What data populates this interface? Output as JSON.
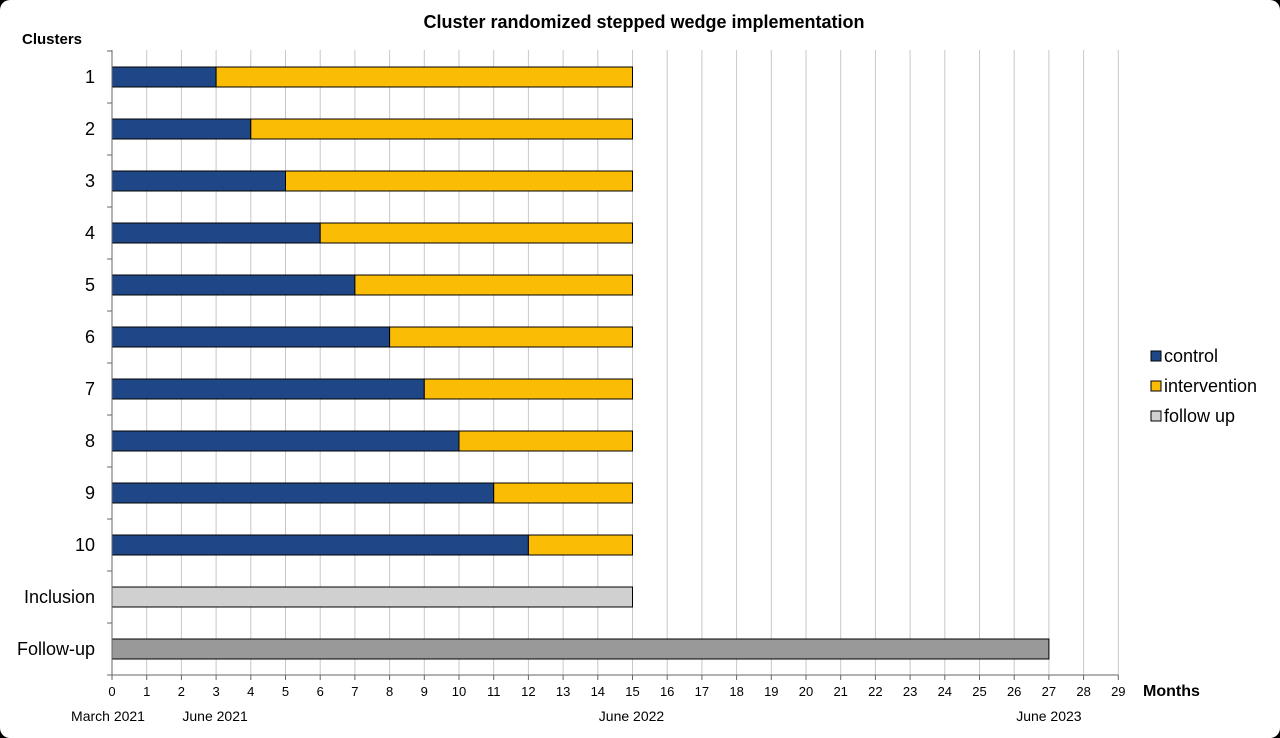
{
  "chart_data": {
    "type": "bar",
    "stacked": true,
    "orientation": "horizontal",
    "title": "Cluster randomized stepped wedge implementation",
    "ylabel": "Clusters",
    "xlabel": "Months",
    "xlim": [
      0,
      29
    ],
    "x_ticks": [
      0,
      1,
      2,
      3,
      4,
      5,
      6,
      7,
      8,
      9,
      10,
      11,
      12,
      13,
      14,
      15,
      16,
      17,
      18,
      19,
      20,
      21,
      22,
      23,
      24,
      25,
      26,
      27,
      28,
      29
    ],
    "grid": true,
    "legend_position": "right",
    "categories": [
      "1",
      "2",
      "3",
      "4",
      "5",
      "6",
      "7",
      "8",
      "9",
      "10",
      "Inclusion",
      "Follow-up"
    ],
    "series": [
      {
        "name": "control",
        "color": "#1f4788",
        "values": [
          3,
          4,
          5,
          6,
          7,
          8,
          9,
          10,
          11,
          12,
          0,
          0
        ]
      },
      {
        "name": "intervention",
        "color": "#fbbc05",
        "values": [
          12,
          11,
          10,
          9,
          8,
          7,
          6,
          5,
          4,
          3,
          0,
          0
        ]
      },
      {
        "name": "follow up",
        "color": "#d0d0d0",
        "values": [
          0,
          0,
          0,
          0,
          0,
          0,
          0,
          0,
          0,
          0,
          15,
          0
        ]
      }
    ],
    "followup_bar": {
      "category": "Follow-up",
      "value": 27,
      "color": "#999999"
    },
    "date_annotations": [
      {
        "x": 0,
        "text": "March 2021"
      },
      {
        "x": 3,
        "text": "June 2021"
      },
      {
        "x": 15,
        "text": "June 2022"
      },
      {
        "x": 27,
        "text": "June 2023"
      }
    ],
    "legend": [
      {
        "label": "control",
        "color": "#1f4788"
      },
      {
        "label": "intervention",
        "color": "#fbbc05"
      },
      {
        "label": "follow up",
        "color": "#d0d0d0"
      }
    ]
  }
}
